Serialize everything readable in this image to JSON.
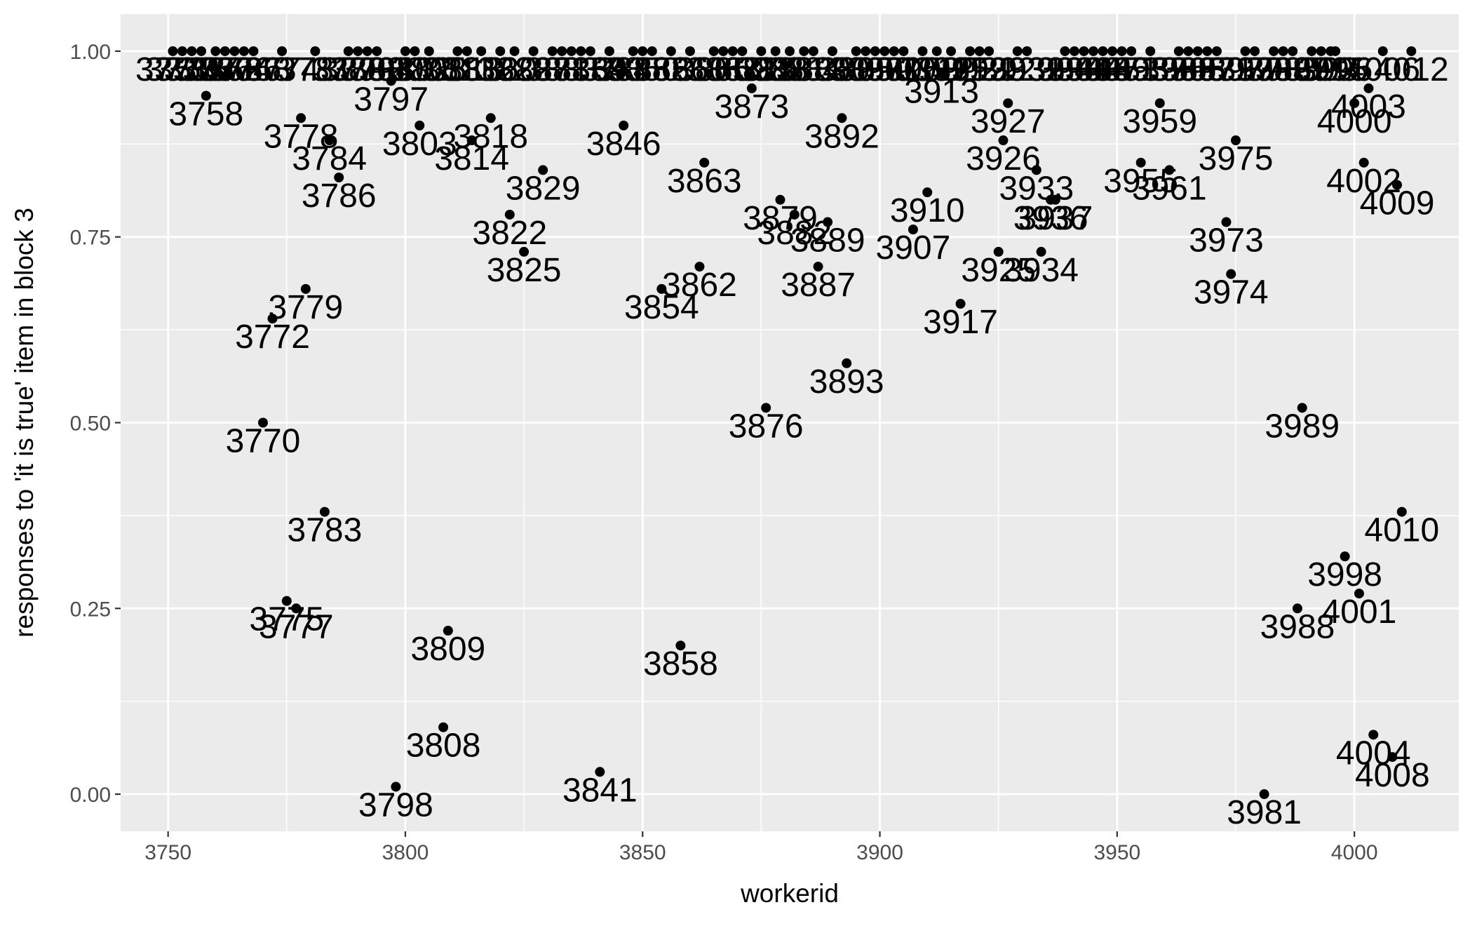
{
  "chart_data": {
    "type": "scatter",
    "title": "",
    "xlabel": "workerid",
    "ylabel": "responses to 'it is true' item in block 3",
    "xlim": [
      3740,
      4022
    ],
    "ylim": [
      -0.05,
      1.05
    ],
    "x_ticks": [
      3750,
      3800,
      3850,
      3900,
      3950,
      4000
    ],
    "x_tick_labels": [
      "3750",
      "3800",
      "3850",
      "3900",
      "3950",
      "4000"
    ],
    "y_ticks": [
      0,
      0.25,
      0.5,
      0.75,
      1
    ],
    "y_tick_labels": [
      "0.00",
      "0.25",
      "0.50",
      "0.75",
      "1.00"
    ],
    "grid": true,
    "point_color": "#000000",
    "panel_color": "#ebebeb",
    "grid_color": "#ffffff",
    "label_color": "#000000",
    "points": [
      {
        "x": 3758,
        "y": 0.94,
        "label": "3758"
      },
      {
        "x": 3770,
        "y": 0.5,
        "label": "3770"
      },
      {
        "x": 3772,
        "y": 0.64,
        "label": "3772"
      },
      {
        "x": 3775,
        "y": 0.26,
        "label": "3775"
      },
      {
        "x": 3777,
        "y": 0.25,
        "label": "3777"
      },
      {
        "x": 3778,
        "y": 0.91,
        "label": "3778"
      },
      {
        "x": 3779,
        "y": 0.68,
        "label": "3779"
      },
      {
        "x": 3783,
        "y": 0.38,
        "label": "3783"
      },
      {
        "x": 3784,
        "y": 0.88,
        "label": "3784"
      },
      {
        "x": 3786,
        "y": 0.83,
        "label": "3786"
      },
      {
        "x": 3797,
        "y": 0.96,
        "label": "3797"
      },
      {
        "x": 3798,
        "y": 0.01,
        "label": "3798"
      },
      {
        "x": 3803,
        "y": 0.9,
        "label": "3803"
      },
      {
        "x": 3808,
        "y": 0.09,
        "label": "3808"
      },
      {
        "x": 3809,
        "y": 0.22,
        "label": "3809"
      },
      {
        "x": 3814,
        "y": 0.88,
        "label": "3814"
      },
      {
        "x": 3818,
        "y": 0.91,
        "label": "3818"
      },
      {
        "x": 3822,
        "y": 0.78,
        "label": "3822"
      },
      {
        "x": 3825,
        "y": 0.73,
        "label": "3825"
      },
      {
        "x": 3829,
        "y": 0.84,
        "label": "3829"
      },
      {
        "x": 3841,
        "y": 0.03,
        "label": "3841"
      },
      {
        "x": 3846,
        "y": 0.9,
        "label": "3846"
      },
      {
        "x": 3854,
        "y": 0.68,
        "label": "3854"
      },
      {
        "x": 3858,
        "y": 0.2,
        "label": "3858"
      },
      {
        "x": 3862,
        "y": 0.71,
        "label": "3862"
      },
      {
        "x": 3863,
        "y": 0.85,
        "label": "3863"
      },
      {
        "x": 3873,
        "y": 0.95,
        "label": "3873"
      },
      {
        "x": 3876,
        "y": 0.52,
        "label": "3876"
      },
      {
        "x": 3879,
        "y": 0.8,
        "label": "3879"
      },
      {
        "x": 3882,
        "y": 0.78,
        "label": "3882"
      },
      {
        "x": 3887,
        "y": 0.71,
        "label": "3887"
      },
      {
        "x": 3889,
        "y": 0.77,
        "label": "3889"
      },
      {
        "x": 3892,
        "y": 0.91,
        "label": "3892"
      },
      {
        "x": 3893,
        "y": 0.58,
        "label": "3893"
      },
      {
        "x": 3907,
        "y": 0.76,
        "label": "3907"
      },
      {
        "x": 3910,
        "y": 0.81,
        "label": "3910"
      },
      {
        "x": 3913,
        "y": 0.97,
        "label": "3913"
      },
      {
        "x": 3917,
        "y": 0.66,
        "label": "3917"
      },
      {
        "x": 3925,
        "y": 0.73,
        "label": "3925"
      },
      {
        "x": 3926,
        "y": 0.88,
        "label": "3926"
      },
      {
        "x": 3927,
        "y": 0.93,
        "label": "3927"
      },
      {
        "x": 3933,
        "y": 0.84,
        "label": "3933"
      },
      {
        "x": 3934,
        "y": 0.73,
        "label": "3934"
      },
      {
        "x": 3936,
        "y": 0.8,
        "label": "3936"
      },
      {
        "x": 3937,
        "y": 0.8,
        "label": "3937"
      },
      {
        "x": 3955,
        "y": 0.85,
        "label": "3955"
      },
      {
        "x": 3959,
        "y": 0.93,
        "label": "3959"
      },
      {
        "x": 3961,
        "y": 0.84,
        "label": "3961"
      },
      {
        "x": 3973,
        "y": 0.77,
        "label": "3973"
      },
      {
        "x": 3974,
        "y": 0.7,
        "label": "3974"
      },
      {
        "x": 3975,
        "y": 0.88,
        "label": "3975"
      },
      {
        "x": 3981,
        "y": 0.0,
        "label": "3981"
      },
      {
        "x": 3988,
        "y": 0.25,
        "label": "3988"
      },
      {
        "x": 3989,
        "y": 0.52,
        "label": "3989"
      },
      {
        "x": 3998,
        "y": 0.32,
        "label": "3998"
      },
      {
        "x": 4000,
        "y": 0.93,
        "label": "4000"
      },
      {
        "x": 4001,
        "y": 0.27,
        "label": "4001"
      },
      {
        "x": 4002,
        "y": 0.85,
        "label": "4002"
      },
      {
        "x": 4003,
        "y": 0.95,
        "label": "4003"
      },
      {
        "x": 4004,
        "y": 0.08,
        "label": "4004"
      },
      {
        "x": 4008,
        "y": 0.05,
        "label": "4008"
      },
      {
        "x": 4009,
        "y": 0.82,
        "label": "4009"
      },
      {
        "x": 4010,
        "y": 0.38,
        "label": "4010"
      },
      {
        "x": 4012,
        "y": 1.0,
        "label": "4012"
      },
      {
        "x": 3751,
        "y": 1.0,
        "label": "3751"
      },
      {
        "x": 3753,
        "y": 1.0,
        "label": "3753"
      },
      {
        "x": 3755,
        "y": 1.0,
        "label": "3755"
      },
      {
        "x": 3757,
        "y": 1.0,
        "label": "3757"
      },
      {
        "x": 3760,
        "y": 1.0,
        "label": "3760"
      },
      {
        "x": 3762,
        "y": 1.0,
        "label": "3762"
      },
      {
        "x": 3764,
        "y": 1.0,
        "label": "3764"
      },
      {
        "x": 3766,
        "y": 1.0,
        "label": "3766"
      },
      {
        "x": 3768,
        "y": 1.0,
        "label": "3768"
      },
      {
        "x": 3774,
        "y": 1.0,
        "label": "3774"
      },
      {
        "x": 3781,
        "y": 1.0,
        "label": "3781"
      },
      {
        "x": 3788,
        "y": 1.0,
        "label": "3788"
      },
      {
        "x": 3790,
        "y": 1.0,
        "label": "3790"
      },
      {
        "x": 3792,
        "y": 1.0,
        "label": "3792"
      },
      {
        "x": 3794,
        "y": 1.0,
        "label": "3794"
      },
      {
        "x": 3800,
        "y": 1.0,
        "label": "3800"
      },
      {
        "x": 3802,
        "y": 1.0,
        "label": "3802"
      },
      {
        "x": 3805,
        "y": 1.0,
        "label": "3805"
      },
      {
        "x": 3811,
        "y": 1.0,
        "label": "3811"
      },
      {
        "x": 3813,
        "y": 1.0,
        "label": "3813"
      },
      {
        "x": 3816,
        "y": 1.0,
        "label": "3816"
      },
      {
        "x": 3820,
        "y": 1.0,
        "label": "3820"
      },
      {
        "x": 3823,
        "y": 1.0,
        "label": "3823"
      },
      {
        "x": 3827,
        "y": 1.0,
        "label": "3827"
      },
      {
        "x": 3831,
        "y": 1.0,
        "label": "3831"
      },
      {
        "x": 3833,
        "y": 1.0,
        "label": "3833"
      },
      {
        "x": 3835,
        "y": 1.0,
        "label": "3835"
      },
      {
        "x": 3837,
        "y": 1.0,
        "label": "3837"
      },
      {
        "x": 3839,
        "y": 1.0,
        "label": "3839"
      },
      {
        "x": 3843,
        "y": 1.0,
        "label": "3843"
      },
      {
        "x": 3848,
        "y": 1.0,
        "label": "3848"
      },
      {
        "x": 3850,
        "y": 1.0,
        "label": "3850"
      },
      {
        "x": 3852,
        "y": 1.0,
        "label": "3852"
      },
      {
        "x": 3856,
        "y": 1.0,
        "label": "3856"
      },
      {
        "x": 3860,
        "y": 1.0,
        "label": "3860"
      },
      {
        "x": 3865,
        "y": 1.0,
        "label": "3865"
      },
      {
        "x": 3867,
        "y": 1.0,
        "label": "3867"
      },
      {
        "x": 3869,
        "y": 1.0,
        "label": "3869"
      },
      {
        "x": 3871,
        "y": 1.0,
        "label": "3871"
      },
      {
        "x": 3875,
        "y": 1.0,
        "label": "3875"
      },
      {
        "x": 3878,
        "y": 1.0,
        "label": "3878"
      },
      {
        "x": 3881,
        "y": 1.0,
        "label": "3881"
      },
      {
        "x": 3884,
        "y": 1.0,
        "label": "3884"
      },
      {
        "x": 3886,
        "y": 1.0,
        "label": "3886"
      },
      {
        "x": 3890,
        "y": 1.0,
        "label": "3890"
      },
      {
        "x": 3895,
        "y": 1.0,
        "label": "3895"
      },
      {
        "x": 3897,
        "y": 1.0,
        "label": "3897"
      },
      {
        "x": 3899,
        "y": 1.0,
        "label": "3899"
      },
      {
        "x": 3901,
        "y": 1.0,
        "label": "3901"
      },
      {
        "x": 3903,
        "y": 1.0,
        "label": "3903"
      },
      {
        "x": 3905,
        "y": 1.0,
        "label": "3905"
      },
      {
        "x": 3909,
        "y": 1.0,
        "label": "3909"
      },
      {
        "x": 3912,
        "y": 1.0,
        "label": "3912"
      },
      {
        "x": 3915,
        "y": 1.0,
        "label": "3915"
      },
      {
        "x": 3919,
        "y": 1.0,
        "label": "3919"
      },
      {
        "x": 3921,
        "y": 1.0,
        "label": "3921"
      },
      {
        "x": 3923,
        "y": 1.0,
        "label": "3923"
      },
      {
        "x": 3929,
        "y": 1.0,
        "label": "3929"
      },
      {
        "x": 3931,
        "y": 1.0,
        "label": "3931"
      },
      {
        "x": 3939,
        "y": 1.0,
        "label": "3939"
      },
      {
        "x": 3941,
        "y": 1.0,
        "label": "3941"
      },
      {
        "x": 3943,
        "y": 1.0,
        "label": "3943"
      },
      {
        "x": 3945,
        "y": 1.0,
        "label": "3945"
      },
      {
        "x": 3947,
        "y": 1.0,
        "label": "3947"
      },
      {
        "x": 3949,
        "y": 1.0,
        "label": "3949"
      },
      {
        "x": 3951,
        "y": 1.0,
        "label": "3951"
      },
      {
        "x": 3953,
        "y": 1.0,
        "label": "3953"
      },
      {
        "x": 3957,
        "y": 1.0,
        "label": "3957"
      },
      {
        "x": 3963,
        "y": 1.0,
        "label": "3963"
      },
      {
        "x": 3965,
        "y": 1.0,
        "label": "3965"
      },
      {
        "x": 3967,
        "y": 1.0,
        "label": "3967"
      },
      {
        "x": 3969,
        "y": 1.0,
        "label": "3969"
      },
      {
        "x": 3971,
        "y": 1.0,
        "label": "3971"
      },
      {
        "x": 3977,
        "y": 1.0,
        "label": "3977"
      },
      {
        "x": 3979,
        "y": 1.0,
        "label": "3979"
      },
      {
        "x": 3983,
        "y": 1.0,
        "label": "3983"
      },
      {
        "x": 3985,
        "y": 1.0,
        "label": "3985"
      },
      {
        "x": 3987,
        "y": 1.0,
        "label": "3987"
      },
      {
        "x": 3991,
        "y": 1.0,
        "label": "3991"
      },
      {
        "x": 3993,
        "y": 1.0,
        "label": "3993"
      },
      {
        "x": 3995,
        "y": 1.0,
        "label": "3995"
      },
      {
        "x": 3996,
        "y": 1.0,
        "label": "3996"
      },
      {
        "x": 4006,
        "y": 1.0,
        "label": "4006"
      }
    ]
  }
}
